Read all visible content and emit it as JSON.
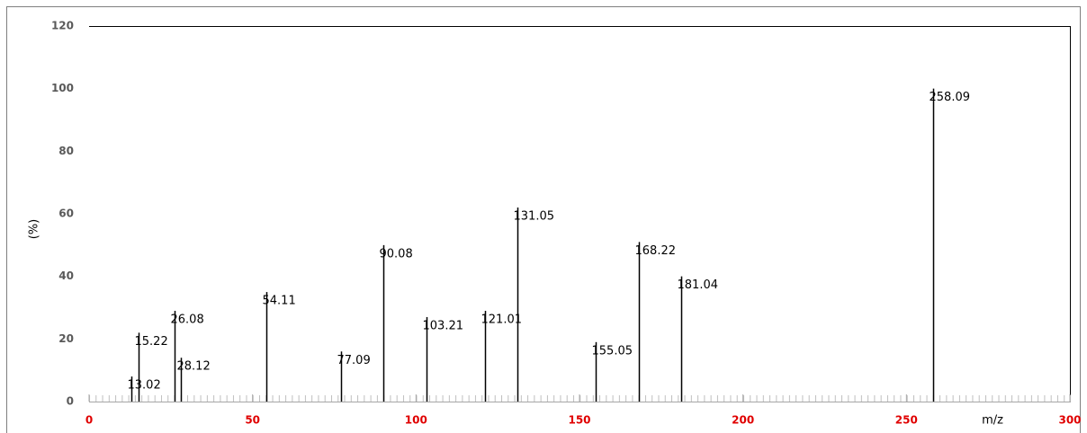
{
  "chart_data": {
    "type": "stem",
    "x": [
      13.02,
      15.22,
      26.08,
      28.12,
      54.11,
      77.09,
      90.08,
      103.21,
      121.01,
      131.05,
      155.05,
      168.22,
      181.04,
      258.09
    ],
    "values": [
      8,
      22,
      29,
      14,
      35,
      16,
      50,
      27,
      29,
      62,
      19,
      51,
      40,
      100
    ],
    "color": "#000000",
    "xlim": [
      0,
      300
    ],
    "xticks": [
      0,
      50,
      100,
      150,
      200,
      250,
      300
    ],
    "ylim": [
      0,
      120
    ],
    "yticks": [
      0,
      20,
      40,
      60,
      80,
      100,
      120
    ],
    "xlabel": "m/z",
    "ylabel": "(%)"
  }
}
